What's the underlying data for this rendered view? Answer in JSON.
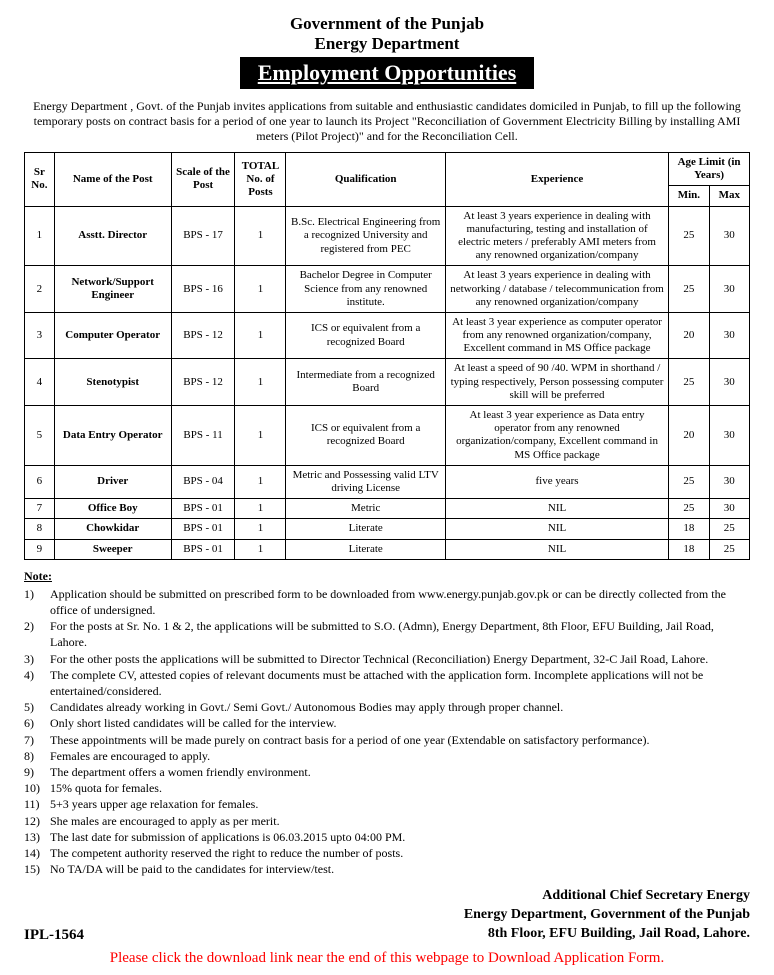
{
  "header": {
    "org": "Government of the Punjab",
    "dept": "Energy Department",
    "banner": "Employment Opportunities"
  },
  "intro": "Energy Department , Govt. of the Punjab invites applications from suitable and enthusiastic candidates domiciled in Punjab, to fill up the following temporary posts on contract basis for a period of one year to launch its Project \"Reconciliation of Government Electricity Billing by installing AMI meters (Pilot Project)\" and for the Reconciliation Cell.",
  "table": {
    "columns": {
      "sr": "Sr No.",
      "name": "Name of the Post",
      "scale": "Scale of the Post",
      "total": "TOTAL No. of Posts",
      "qual": "Qualification",
      "exp": "Experience",
      "age_group": "Age Limit (in Years)",
      "age_min": "Min.",
      "age_max": "Max"
    },
    "rows": [
      {
        "sr": "1",
        "name": "Asstt. Director",
        "scale": "BPS - 17",
        "total": "1",
        "qual": "B.Sc. Electrical Engineering from a recognized University and registered from PEC",
        "exp": "At least 3 years experience in dealing with manufacturing, testing and installation of electric meters / preferably AMI meters from any renowned organization/company",
        "min": "25",
        "max": "30"
      },
      {
        "sr": "2",
        "name": "Network/Support Engineer",
        "scale": "BPS - 16",
        "total": "1",
        "qual": "Bachelor Degree in Computer Science from any renowned institute.",
        "exp": "At least 3 years experience in dealing with networking / database / telecommunication from any renowned organization/company",
        "min": "25",
        "max": "30"
      },
      {
        "sr": "3",
        "name": "Computer Operator",
        "scale": "BPS - 12",
        "total": "1",
        "qual": "ICS or equivalent from a recognized Board",
        "exp": "At least 3 year experience as computer operator from any renowned organization/company, Excellent command in MS Office package",
        "min": "20",
        "max": "30"
      },
      {
        "sr": "4",
        "name": "Stenotypist",
        "scale": "BPS - 12",
        "total": "1",
        "qual": "Intermediate from a recognized Board",
        "exp": "At least a speed of 90 /40. WPM in shorthand / typing respectively, Person possessing computer skill will be preferred",
        "min": "25",
        "max": "30"
      },
      {
        "sr": "5",
        "name": "Data Entry Operator",
        "scale": "BPS - 11",
        "total": "1",
        "qual": "ICS or equivalent from a recognized Board",
        "exp": "At least 3 year experience as Data entry operator from any renowned organization/company, Excellent command in MS Office package",
        "min": "20",
        "max": "30"
      },
      {
        "sr": "6",
        "name": "Driver",
        "scale": "BPS - 04",
        "total": "1",
        "qual": "Metric and Possessing valid LTV driving License",
        "exp": "five years",
        "min": "25",
        "max": "30"
      },
      {
        "sr": "7",
        "name": "Office Boy",
        "scale": "BPS - 01",
        "total": "1",
        "qual": "Metric",
        "exp": "NIL",
        "min": "25",
        "max": "30"
      },
      {
        "sr": "8",
        "name": "Chowkidar",
        "scale": "BPS - 01",
        "total": "1",
        "qual": "Literate",
        "exp": "NIL",
        "min": "18",
        "max": "25"
      },
      {
        "sr": "9",
        "name": "Sweeper",
        "scale": "BPS - 01",
        "total": "1",
        "qual": "Literate",
        "exp": "NIL",
        "min": "18",
        "max": "25"
      }
    ]
  },
  "notes": {
    "heading": "Note:",
    "items": [
      "Application should be submitted on prescribed form to be downloaded from www.energy.punjab.gov.pk or can be directly collected from the office of undersigned.",
      "For the posts at Sr. No. 1 & 2, the applications will be submitted to S.O. (Admn), Energy Department, 8th Floor, EFU Building, Jail Road, Lahore.",
      "For the other posts the applications will be submitted to  Director Technical (Reconciliation) Energy Department, 32-C Jail Road, Lahore.",
      "The complete CV, attested copies of relevant documents must be attached with the application form. Incomplete applications will not be entertained/considered.",
      "Candidates already working in Govt./ Semi Govt./ Autonomous Bodies may apply through proper channel.",
      "Only short listed candidates will be called for the interview.",
      "These appointments will be made purely on contract basis for a period of one year (Extendable on satisfactory performance).",
      "Females are encouraged to apply.",
      "The department offers a women friendly environment.",
      "15% quota for females.",
      "5+3 years upper age relaxation for females.",
      "She males are encouraged to apply as per merit.",
      "The last date for submission of applications is 06.03.2015 upto 04:00 PM.",
      "The competent authority reserved the right to reduce the number of posts.",
      "No TA/DA will be paid to the candidates for interview/test."
    ]
  },
  "signature": {
    "title": "Additional Chief Secretary Energy",
    "line2": "Energy Department, Government of the Punjab",
    "line3": "8th Floor, EFU Building, Jail Road, Lahore."
  },
  "ipl": "IPL-1564",
  "download_note": "Please click the download link near the end of this webpage to Download Application Form."
}
